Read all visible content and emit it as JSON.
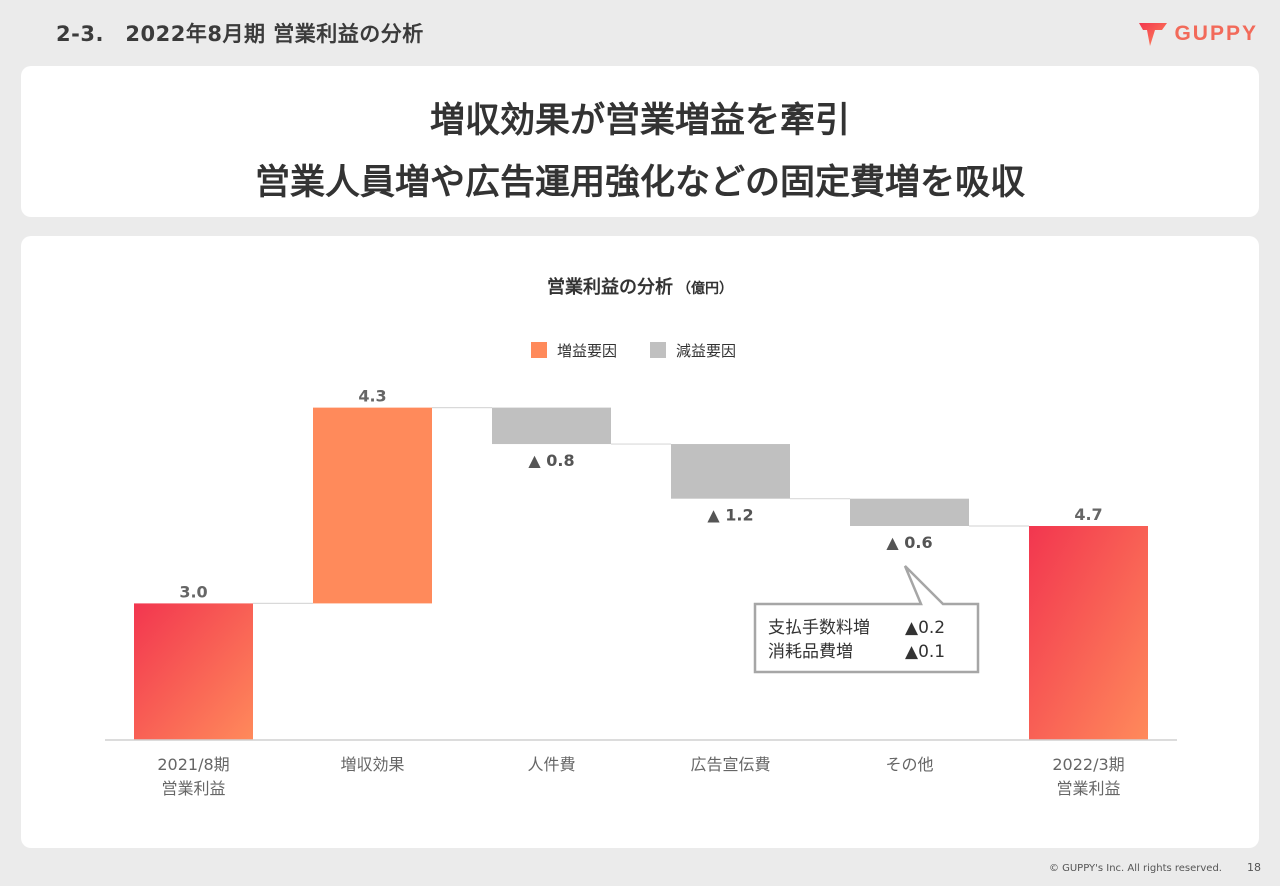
{
  "header": {
    "section_title": "2-3.　2022年8月期 営業利益の分析",
    "logo_text": "GUPPY"
  },
  "headline": {
    "line1": "増収効果が営業増益を牽引",
    "line2": "営業人員増や広告運用強化などの固定費増を吸収"
  },
  "chart_data": {
    "type": "waterfall",
    "title": "営業利益の分析",
    "unit": "（億円）",
    "legend": [
      {
        "label": "増益要因",
        "color": "#ff8a5b"
      },
      {
        "label": "減益要因",
        "color": "#c0c0c0"
      }
    ],
    "legend_position": "top-center",
    "ylim": [
      0,
      4.7
    ],
    "categories": [
      [
        "2021/8期",
        "営業利益"
      ],
      [
        "増収効果"
      ],
      [
        "人件費"
      ],
      [
        "広告宣伝費"
      ],
      [
        "その他"
      ],
      [
        "2022/3期",
        "営業利益"
      ]
    ],
    "bars": [
      {
        "kind": "total",
        "start": 0,
        "end": 3.0,
        "label": "3.0"
      },
      {
        "kind": "increase",
        "start": 3.0,
        "end": 7.3,
        "label": "4.3"
      },
      {
        "kind": "decrease",
        "start": 7.3,
        "end": 6.5,
        "label": "▲ 0.8"
      },
      {
        "kind": "decrease",
        "start": 6.5,
        "end": 5.3,
        "label": "▲ 1.2"
      },
      {
        "kind": "decrease",
        "start": 5.3,
        "end": 4.7,
        "label": "▲ 0.6"
      },
      {
        "kind": "total",
        "start": 0,
        "end": 4.7,
        "label": "4.7"
      }
    ],
    "colors": {
      "increase": "#ff8a5b",
      "decrease": "#c0c0c0",
      "total_top": "#f2364f",
      "total_bottom": "#ff8a5b"
    },
    "callout": {
      "rows": [
        {
          "item": "支払手数料増",
          "value": "▲0.2"
        },
        {
          "item": "消耗品費増",
          "value": "▲0.1"
        }
      ]
    }
  },
  "footer": {
    "copyright": "© GUPPY's Inc. All rights reserved.",
    "page_number": "18"
  }
}
